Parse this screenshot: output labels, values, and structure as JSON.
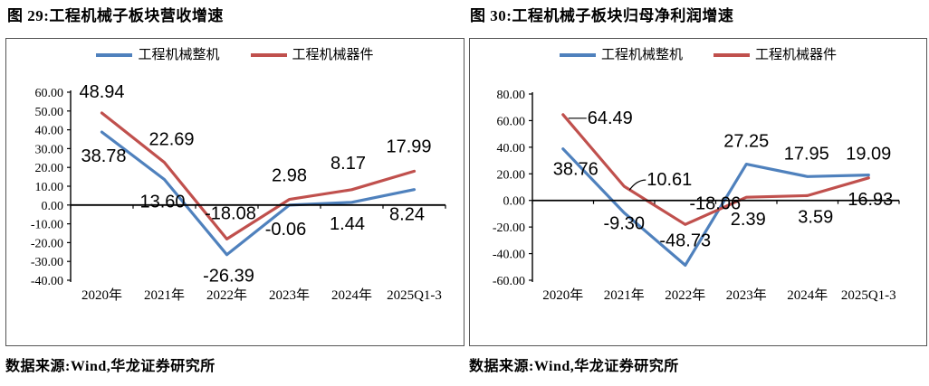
{
  "figures": [
    {
      "title": "图 29:工程机械子板块营收增速",
      "source": "数据来源:Wind,华龙证券研究所"
    },
    {
      "title": "图 30:工程机械子板块归母净利润增速",
      "source": "数据来源:Wind,华龙证券研究所"
    }
  ],
  "colors": {
    "machine_blue": "#4F81BD",
    "component_red": "#C0504D",
    "axis_black": "#000000",
    "panel_border": "#555555"
  },
  "chart_data": [
    {
      "type": "line",
      "title": "工程机械子板块营收增速",
      "categories": [
        "2020年",
        "2021年",
        "2022年",
        "2023年",
        "2024年",
        "2025Q1-3"
      ],
      "ylim": [
        -40,
        60
      ],
      "ystep": 10,
      "grid": false,
      "legend_position": "top-center",
      "series": [
        {
          "name": "工程机械整机",
          "color": "machine_blue",
          "values": [
            38.78,
            13.6,
            -26.39,
            -0.06,
            1.44,
            8.24
          ],
          "labels": [
            "38.78",
            "13.60",
            "-26.39",
            "-0.06",
            "1.44",
            "8.24"
          ],
          "label_offsets": [
            {
              "dx": 2,
              "dy": 26
            },
            {
              "dx": -2,
              "dy": 24
            },
            {
              "dx": 2,
              "dy": 23
            },
            {
              "dx": -4,
              "dy": 26
            },
            {
              "dx": -5,
              "dy": 23
            },
            {
              "dx": -8,
              "dy": 27
            }
          ]
        },
        {
          "name": "工程机械器件",
          "color": "component_red",
          "values": [
            48.94,
            22.69,
            -18.08,
            2.98,
            8.17,
            17.99
          ],
          "labels": [
            "48.94",
            "22.69",
            "-18.08",
            "2.98",
            "8.17",
            "17.99"
          ],
          "label_offsets": [
            {
              "dx": 0,
              "dy": -24
            },
            {
              "dx": 8,
              "dy": -26
            },
            {
              "dx": 4,
              "dy": -29
            },
            {
              "dx": 0,
              "dy": -27
            },
            {
              "dx": -4,
              "dy": -30
            },
            {
              "dx": -6,
              "dy": -28
            }
          ]
        }
      ]
    },
    {
      "type": "line",
      "title": "工程机械子板块归母净利润增速",
      "categories": [
        "2020年",
        "2021年",
        "2022年",
        "2023年",
        "2024年",
        "2025Q1-3"
      ],
      "ylim": [
        -60,
        80
      ],
      "ystep": 20,
      "grid": false,
      "legend_position": "top-center",
      "series": [
        {
          "name": "工程机械整机",
          "color": "machine_blue",
          "values": [
            38.76,
            -9.3,
            -48.73,
            27.25,
            17.95,
            19.09
          ],
          "labels": [
            "38.76",
            "-9.30",
            "-48.73",
            "27.25",
            "17.95",
            "19.09"
          ],
          "label_offsets": [
            {
              "dx": 14,
              "dy": 22
            },
            {
              "dx": 0,
              "dy": 11
            },
            {
              "dx": 0,
              "dy": -28
            },
            {
              "dx": 0,
              "dy": -26
            },
            {
              "dx": -1,
              "dy": -26
            },
            {
              "dx": 0,
              "dy": -24
            }
          ]
        },
        {
          "name": "工程机械器件",
          "color": "component_red",
          "values": [
            64.49,
            10.61,
            -18.06,
            2.39,
            3.59,
            16.93
          ],
          "labels": [
            "64.49",
            "10.61",
            "-18.06",
            "2.39",
            "3.59",
            "16.93"
          ],
          "label_offsets": [
            {
              "dx": 52,
              "dy": 3,
              "leader": true
            },
            {
              "dx": 50,
              "dy": -8,
              "leader": true
            },
            {
              "dx": 33,
              "dy": -24
            },
            {
              "dx": 2,
              "dy": 24
            },
            {
              "dx": 9,
              "dy": 23
            },
            {
              "dx": 2,
              "dy": 23
            }
          ]
        }
      ]
    }
  ]
}
